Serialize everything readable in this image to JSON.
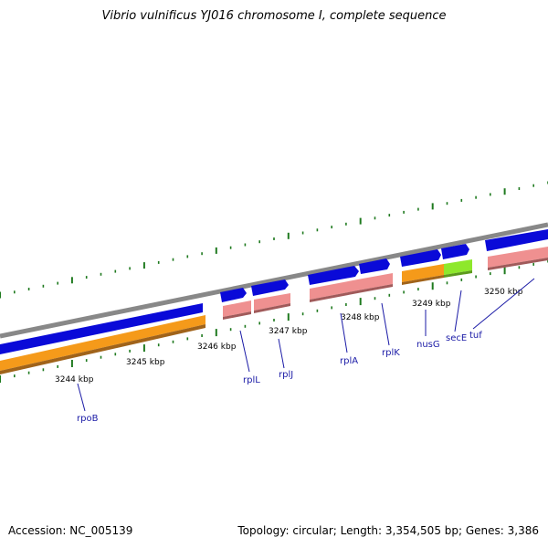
{
  "header": {
    "title": "Vibrio vulnificus YJ016 chromosome I, complete sequence"
  },
  "footer": {
    "accession": "Accession: NC_005139",
    "topology": "Topology: circular; Length: 3,354,505 bp; Genes: 3,386"
  },
  "scale_labels": [
    "3244 kbp",
    "3245 kbp",
    "3246 kbp",
    "3247 kbp",
    "3248 kbp",
    "3249 kbp",
    "3250 kbp"
  ],
  "gene_labels": [
    "rpoB",
    "rplL",
    "rplJ",
    "rplA",
    "rplK",
    "nusG",
    "secE",
    "tuf"
  ],
  "colors": {
    "backbone": "#888888",
    "forward_strand": "#0a0ad8",
    "cds_orange": "#f59a1a",
    "cds_pink": "#ef9090",
    "cds_green": "#8ee82c",
    "tick": "#1f7a1f",
    "label": "#1a1aa6"
  }
}
